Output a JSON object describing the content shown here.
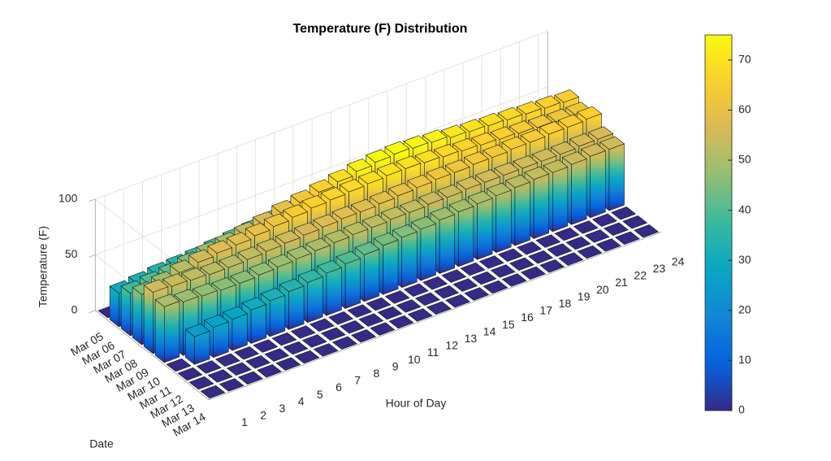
{
  "chart_data": {
    "type": "bar3",
    "title": "Temperature (F) Distribution",
    "x_label": "Hour of Day",
    "y_label": "Date",
    "z_label": "Temperature (F)",
    "x": [
      1,
      2,
      3,
      4,
      5,
      6,
      7,
      8,
      9,
      10,
      11,
      12,
      13,
      14,
      15,
      16,
      17,
      18,
      19,
      20,
      21,
      22,
      23,
      24
    ],
    "y_categories": [
      "Mar 05",
      "Mar 06",
      "Mar 07",
      "Mar 08",
      "Mar 09",
      "Mar 10",
      "Mar 11",
      "Mar 12",
      "Mar 13",
      "Mar 14"
    ],
    "z": [
      [
        0,
        0,
        0,
        0,
        0,
        0,
        0,
        0,
        0,
        0,
        0,
        0,
        0,
        0,
        0,
        0,
        0,
        0,
        0,
        0,
        0,
        0,
        0,
        0
      ],
      [
        30,
        32,
        34,
        35,
        36,
        38,
        40,
        42,
        44,
        46,
        48,
        50,
        52,
        53,
        54,
        55,
        55,
        54,
        54,
        53,
        52,
        52,
        51,
        50
      ],
      [
        38,
        40,
        42,
        45,
        48,
        50,
        53,
        56,
        60,
        63,
        66,
        69,
        72,
        74,
        75,
        74,
        73,
        71,
        70,
        69,
        68,
        67,
        66,
        65
      ],
      [
        45,
        48,
        52,
        55,
        57,
        58,
        60,
        62,
        64,
        66,
        67,
        68,
        69,
        70,
        70,
        69,
        68,
        67,
        66,
        65,
        64,
        63,
        62,
        62
      ],
      [
        55,
        54,
        53,
        52,
        52,
        53,
        54,
        55,
        56,
        57,
        58,
        58,
        59,
        60,
        61,
        62,
        62,
        63,
        63,
        64,
        64,
        65,
        65,
        66
      ],
      [
        50,
        48,
        47,
        46,
        46,
        47,
        48,
        49,
        50,
        51,
        52,
        52,
        53,
        53,
        54,
        54,
        55,
        55,
        55,
        55,
        55,
        55,
        56,
        56
      ],
      [
        0,
        25,
        27,
        28,
        30,
        32,
        34,
        36,
        38,
        40,
        42,
        44,
        45,
        46,
        48,
        49,
        50,
        51,
        52,
        53,
        53,
        54,
        55,
        55
      ],
      [
        0,
        0,
        0,
        0,
        0,
        0,
        0,
        0,
        0,
        0,
        0,
        0,
        0,
        0,
        0,
        0,
        0,
        0,
        0,
        0,
        0,
        0,
        0,
        0
      ],
      [
        0,
        0,
        0,
        0,
        0,
        0,
        0,
        0,
        0,
        0,
        0,
        0,
        0,
        0,
        0,
        0,
        0,
        0,
        0,
        0,
        0,
        0,
        0,
        0
      ],
      [
        0,
        0,
        0,
        0,
        0,
        0,
        0,
        0,
        0,
        0,
        0,
        0,
        0,
        0,
        0,
        0,
        0,
        0,
        0,
        0,
        0,
        0,
        0,
        0
      ]
    ],
    "zlim": [
      0,
      100
    ],
    "zticks": [
      0,
      50,
      100
    ],
    "colormap": "parula",
    "clim": [
      0,
      75
    ],
    "cticks": [
      0,
      10,
      20,
      30,
      40,
      50,
      60,
      70
    ],
    "grid": true
  }
}
